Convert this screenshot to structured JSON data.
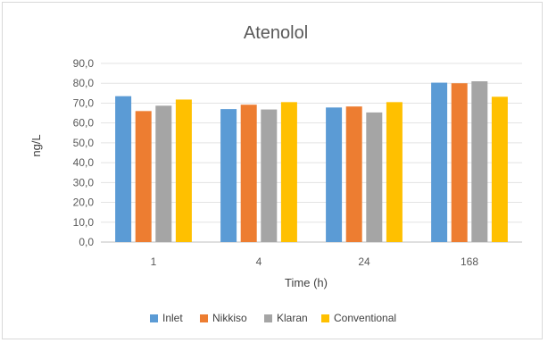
{
  "chart_data": {
    "type": "bar",
    "title": "Atenolol",
    "xlabel": "Time (h)",
    "ylabel": "ng/L",
    "categories": [
      "1",
      "4",
      "24",
      "168"
    ],
    "ylim": [
      0,
      90
    ],
    "yticks": [
      "0,0",
      "10,0",
      "20,0",
      "30,0",
      "40,0",
      "50,0",
      "60,0",
      "70,0",
      "80,0",
      "90,0"
    ],
    "grid": true,
    "legend_position": "bottom",
    "series": [
      {
        "name": "Inlet",
        "color": "#5b9bd5",
        "values": [
          73.5,
          67.0,
          67.8,
          80.3
        ]
      },
      {
        "name": "Nikkiso",
        "color": "#ed7d31",
        "values": [
          66.0,
          69.2,
          68.3,
          80.0
        ]
      },
      {
        "name": "Klaran",
        "color": "#a5a5a5",
        "values": [
          68.7,
          66.8,
          65.3,
          81.0
        ]
      },
      {
        "name": "Conventional",
        "color": "#ffc000",
        "values": [
          71.8,
          70.5,
          70.5,
          73.2
        ]
      }
    ]
  }
}
